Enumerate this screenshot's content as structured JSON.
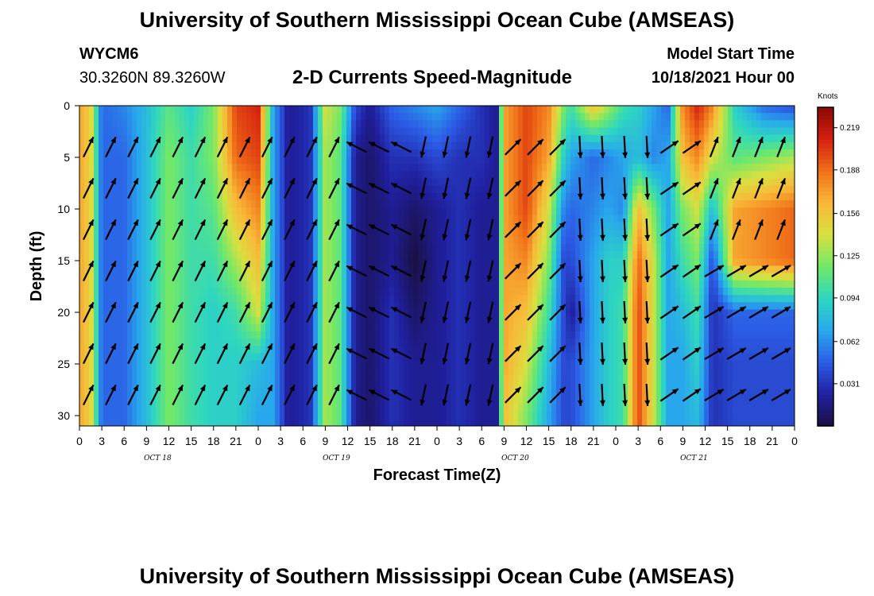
{
  "header": {
    "title": "University of Southern Mississippi Ocean Cube (AMSEAS)",
    "station": "WYCM6",
    "coordinates": "30.3260N  89.3260W",
    "subtitle": "2-D Currents Speed-Magnitude",
    "model_start_label": "Model Start Time",
    "model_start_value": "10/18/2021 Hour 00"
  },
  "footer": {
    "title": "University of Southern Mississippi Ocean Cube (AMSEAS)"
  },
  "chart_data": {
    "type": "heatmap",
    "xlabel": "Forecast Time(Z)",
    "ylabel": "Depth (ft)",
    "x_tick_labels": [
      "0",
      "3",
      "6",
      "9",
      "12",
      "15",
      "18",
      "21",
      "0",
      "3",
      "6",
      "9",
      "12",
      "15",
      "18",
      "21",
      "0",
      "3",
      "6",
      "9",
      "12",
      "15",
      "18",
      "21",
      "0",
      "3",
      "6",
      "9",
      "12",
      "15",
      "18",
      "21",
      "0"
    ],
    "x_range_hours": [
      0,
      96
    ],
    "date_labels": [
      {
        "label": "OCT 18",
        "hour": 10.5
      },
      {
        "label": "OCT 19",
        "hour": 34.5
      },
      {
        "label": "OCT 20",
        "hour": 58.5
      },
      {
        "label": "OCT 21",
        "hour": 82.5
      }
    ],
    "y_ticks": [
      0,
      5,
      10,
      15,
      20,
      25,
      30
    ],
    "y_range": [
      0,
      31
    ],
    "y_inverted": true,
    "colorbar": {
      "units": "Knots",
      "tick_labels": [
        "0.219",
        "0.188",
        "0.156",
        "0.125",
        "0.094",
        "0.062",
        "0.031"
      ],
      "tick_values": [
        0.219,
        0.188,
        0.156,
        0.125,
        0.094,
        0.062,
        0.031
      ],
      "range": [
        0.0,
        0.234
      ],
      "colors": [
        "#1a1040",
        "#2020a0",
        "#2c5ce6",
        "#28a8ec",
        "#2ed6c0",
        "#6fe86a",
        "#d8e040",
        "#f8b838",
        "#f07018",
        "#d42010",
        "#8a0a04"
      ]
    },
    "speed_columns": [
      {
        "hour": 0,
        "profile": [
          0.17,
          0.17,
          0.17,
          0.17,
          0.17,
          0.17,
          0.17
        ]
      },
      {
        "hour": 1.5,
        "profile": [
          0.15,
          0.15,
          0.15,
          0.15,
          0.15,
          0.15,
          0.15
        ]
      },
      {
        "hour": 3,
        "profile": [
          0.05,
          0.05,
          0.05,
          0.05,
          0.05,
          0.05,
          0.05
        ]
      },
      {
        "hour": 6,
        "profile": [
          0.06,
          0.05,
          0.05,
          0.05,
          0.05,
          0.05,
          0.05
        ]
      },
      {
        "hour": 9,
        "profile": [
          0.08,
          0.08,
          0.08,
          0.08,
          0.08,
          0.08,
          0.08
        ]
      },
      {
        "hour": 12,
        "profile": [
          0.11,
          0.12,
          0.12,
          0.12,
          0.12,
          0.12,
          0.12
        ]
      },
      {
        "hour": 15,
        "profile": [
          0.09,
          0.1,
          0.1,
          0.1,
          0.1,
          0.1,
          0.1
        ]
      },
      {
        "hour": 18,
        "profile": [
          0.12,
          0.12,
          0.11,
          0.1,
          0.09,
          0.09,
          0.09
        ]
      },
      {
        "hour": 21,
        "profile": [
          0.2,
          0.19,
          0.16,
          0.13,
          0.1,
          0.09,
          0.09
        ]
      },
      {
        "hour": 24,
        "profile": [
          0.21,
          0.2,
          0.18,
          0.16,
          0.14,
          0.08,
          0.07
        ]
      },
      {
        "hour": 26,
        "profile": [
          0.07,
          0.07,
          0.07,
          0.07,
          0.07,
          0.07,
          0.07
        ]
      },
      {
        "hour": 28,
        "profile": [
          0.02,
          0.02,
          0.02,
          0.02,
          0.02,
          0.02,
          0.02
        ]
      },
      {
        "hour": 31,
        "profile": [
          0.03,
          0.03,
          0.03,
          0.03,
          0.03,
          0.03,
          0.03
        ]
      },
      {
        "hour": 33,
        "profile": [
          0.14,
          0.13,
          0.13,
          0.13,
          0.13,
          0.13,
          0.13
        ]
      },
      {
        "hour": 35,
        "profile": [
          0.12,
          0.11,
          0.11,
          0.11,
          0.11,
          0.11,
          0.11
        ]
      },
      {
        "hour": 37,
        "profile": [
          0.04,
          0.02,
          0.02,
          0.02,
          0.02,
          0.02,
          0.02
        ]
      },
      {
        "hour": 39,
        "profile": [
          0.02,
          0.01,
          0.01,
          0.01,
          0.01,
          0.01,
          0.01
        ]
      },
      {
        "hour": 42,
        "profile": [
          0.05,
          0.03,
          0.02,
          0.02,
          0.03,
          0.03,
          0.03
        ]
      },
      {
        "hour": 45,
        "profile": [
          0.06,
          0.03,
          0.01,
          0.0,
          0.01,
          0.02,
          0.02
        ]
      },
      {
        "hour": 48,
        "profile": [
          0.07,
          0.04,
          0.02,
          0.02,
          0.02,
          0.02,
          0.02
        ]
      },
      {
        "hour": 51,
        "profile": [
          0.05,
          0.03,
          0.03,
          0.03,
          0.03,
          0.03,
          0.03
        ]
      },
      {
        "hour": 54,
        "profile": [
          0.03,
          0.03,
          0.02,
          0.02,
          0.02,
          0.02,
          0.02
        ]
      },
      {
        "hour": 56,
        "profile": [
          0.02,
          0.02,
          0.02,
          0.02,
          0.02,
          0.02,
          0.02
        ]
      },
      {
        "hour": 57,
        "profile": [
          0.17,
          0.17,
          0.17,
          0.17,
          0.17,
          0.17,
          0.16
        ]
      },
      {
        "hour": 60,
        "profile": [
          0.2,
          0.2,
          0.2,
          0.18,
          0.16,
          0.14,
          0.12
        ]
      },
      {
        "hour": 63,
        "profile": [
          0.18,
          0.17,
          0.14,
          0.12,
          0.1,
          0.08,
          0.07
        ]
      },
      {
        "hour": 65,
        "profile": [
          0.12,
          0.09,
          0.06,
          0.04,
          0.04,
          0.04,
          0.04
        ]
      },
      {
        "hour": 66,
        "profile": [
          0.1,
          0.07,
          0.05,
          0.04,
          0.02,
          0.04,
          0.04
        ]
      },
      {
        "hour": 69,
        "profile": [
          0.16,
          0.05,
          0.06,
          0.07,
          0.07,
          0.07,
          0.07
        ]
      },
      {
        "hour": 71,
        "profile": [
          0.13,
          0.06,
          0.07,
          0.09,
          0.09,
          0.09,
          0.09
        ]
      },
      {
        "hour": 73,
        "profile": [
          0.1,
          0.07,
          0.06,
          0.09,
          0.1,
          0.1,
          0.1
        ]
      },
      {
        "hour": 75,
        "profile": [
          0.09,
          0.08,
          0.16,
          0.19,
          0.2,
          0.2,
          0.2
        ]
      },
      {
        "hour": 77,
        "profile": [
          0.07,
          0.06,
          0.12,
          0.14,
          0.14,
          0.14,
          0.14
        ]
      },
      {
        "hour": 79,
        "profile": [
          0.05,
          0.07,
          0.07,
          0.07,
          0.07,
          0.07,
          0.07
        ]
      },
      {
        "hour": 81,
        "profile": [
          0.18,
          0.16,
          0.12,
          0.1,
          0.08,
          0.07,
          0.07
        ]
      },
      {
        "hour": 83,
        "profile": [
          0.21,
          0.18,
          0.14,
          0.12,
          0.1,
          0.09,
          0.08
        ]
      },
      {
        "hour": 85,
        "profile": [
          0.18,
          0.14,
          0.08,
          0.04,
          0.03,
          0.03,
          0.03
        ]
      },
      {
        "hour": 88,
        "profile": [
          0.09,
          0.11,
          0.17,
          0.17,
          0.05,
          0.04,
          0.04
        ]
      },
      {
        "hour": 92,
        "profile": [
          0.05,
          0.12,
          0.18,
          0.18,
          0.05,
          0.04,
          0.04
        ]
      },
      {
        "hour": 96,
        "profile": [
          0.04,
          0.13,
          0.19,
          0.19,
          0.05,
          0.04,
          0.04
        ]
      }
    ],
    "profile_depths_ft": [
      0,
      5,
      10,
      15,
      20,
      25,
      30
    ]
  }
}
